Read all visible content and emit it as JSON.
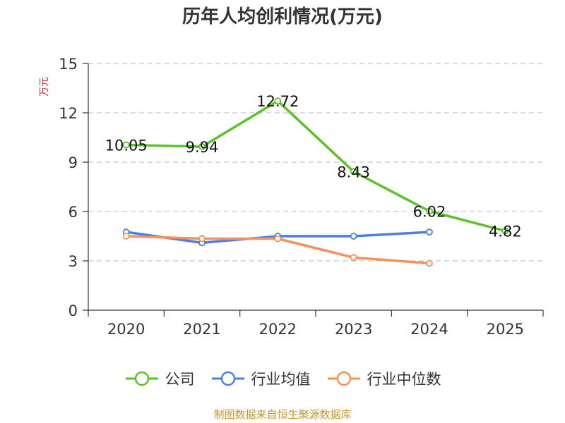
{
  "title": "历年人均创利情况(万元)",
  "source": "制图数据来自恒生聚源数据库",
  "colors": {
    "axis": "#333333",
    "grid": "#c8c8c8",
    "ylabel": "#e03030",
    "source": "#c8962e"
  },
  "chart_data": {
    "type": "line",
    "title": "历年人均创利情况(万元)",
    "xlabel": "",
    "ylabel": "万元",
    "categories": [
      "2020",
      "2021",
      "2022",
      "2023",
      "2024",
      "2025"
    ],
    "ylim": [
      0,
      15
    ],
    "yticks": [
      0,
      3,
      6,
      9,
      12,
      15
    ],
    "grid": true,
    "legend_position": "bottom",
    "series": [
      {
        "name": "公司",
        "color": "#5cc12a",
        "values": [
          10.05,
          9.94,
          12.72,
          8.43,
          6.02,
          4.82
        ],
        "labels": [
          "10.05",
          "9.94",
          "12.72",
          "8.43",
          "6.02",
          "4.82"
        ]
      },
      {
        "name": "行业均值",
        "color": "#4b7fe0",
        "values": [
          4.75,
          4.1,
          4.5,
          4.5,
          4.75,
          null
        ]
      },
      {
        "name": "行业中位数",
        "color": "#f4915c",
        "values": [
          4.5,
          4.35,
          4.35,
          3.2,
          2.85,
          null
        ]
      }
    ]
  }
}
